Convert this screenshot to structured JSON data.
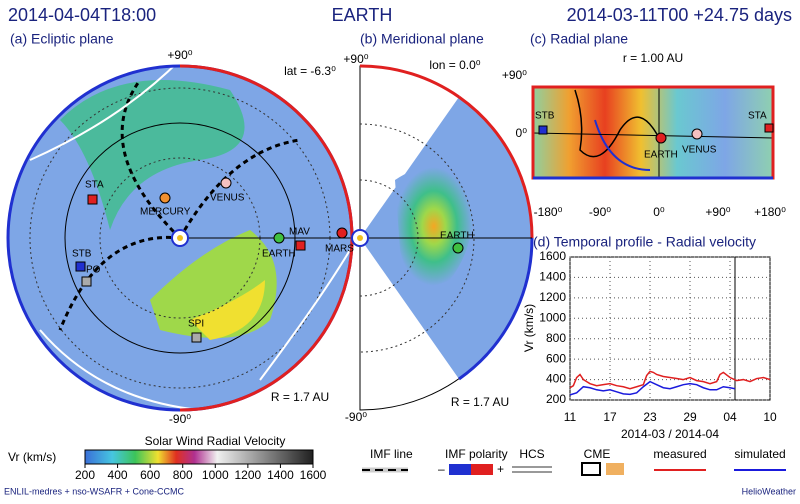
{
  "header": {
    "left": "2014-04-04T18:00",
    "center": "EARTH",
    "right": "2014-03-11T00 +24.75 days"
  },
  "ecliptic": {
    "title": "(a) Ecliptic plane",
    "top": "+90⁰",
    "bottom": "-90⁰",
    "lat": "lat = -6.3⁰",
    "radius": "R = 1.7 AU",
    "objects": [
      "STA",
      "MERCURY",
      "VENUS",
      "EARTH",
      "MAV",
      "MARS",
      "STB",
      "PO",
      "SPI"
    ]
  },
  "meridional": {
    "title": "(b) Meridional plane",
    "top": "+90⁰",
    "bottom": "-90⁰",
    "lon": "lon = 0.0⁰",
    "radius": "R = 1.7 AU",
    "object": "EARTH"
  },
  "radial": {
    "title": "(c) Radial plane",
    "r": "r = 1.00 AU",
    "yticks": [
      "+90⁰",
      "0⁰"
    ],
    "xticks": [
      "-180⁰",
      "-90⁰",
      "0⁰",
      "+90⁰",
      "+180⁰"
    ],
    "objects": [
      "STB",
      "STA",
      "EARTH",
      "VENUS"
    ]
  },
  "colorbar": {
    "title": "Solar Wind Radial Velocity",
    "label": "Vr (km/s)",
    "range": [
      200,
      1600
    ],
    "ticks": [
      200,
      400,
      600,
      800,
      1000,
      1200,
      1400,
      1600
    ]
  },
  "legend": {
    "imf_line": "IMF line",
    "imf_polarity": "IMF polarity",
    "minus": "–",
    "plus": "+",
    "hcs": "HCS",
    "cme": "CME"
  },
  "footer": {
    "left": "ENLIL-medres + nso-WSAFR + Cone-CCMC",
    "right": "HelioWeather"
  },
  "chart_data": {
    "type": "line",
    "title": "(d) Temporal profile - Radial velocity",
    "ylabel": "Vr (km/s)",
    "xlabel": "2014-03 / 2014-04",
    "xlim": [
      0,
      30
    ],
    "xticks": [
      {
        "value": 0,
        "label": "11"
      },
      {
        "value": 6,
        "label": "17"
      },
      {
        "value": 12,
        "label": "23"
      },
      {
        "value": 18,
        "label": "29"
      },
      {
        "value": 24,
        "label": "04"
      },
      {
        "value": 30,
        "label": "10"
      }
    ],
    "ylim": [
      200,
      1600
    ],
    "yticks": [
      200,
      400,
      600,
      800,
      1000,
      1200,
      1400,
      1600
    ],
    "grid": true,
    "now": 24.75,
    "series": [
      {
        "name": "measured",
        "color": "#e02020",
        "x": [
          0,
          0.5,
          1,
          1.5,
          2,
          2.5,
          3,
          4,
          5,
          6,
          7,
          8,
          9,
          10,
          11,
          11.5,
          12,
          12.5,
          13,
          14,
          15,
          16,
          17,
          18,
          19,
          20,
          21,
          22,
          22.5,
          23,
          24,
          25,
          26,
          27,
          28,
          29,
          30
        ],
        "values": [
          320,
          340,
          420,
          450,
          400,
          380,
          360,
          340,
          350,
          360,
          340,
          330,
          310,
          330,
          350,
          440,
          480,
          470,
          450,
          430,
          420,
          410,
          400,
          420,
          390,
          380,
          360,
          380,
          450,
          470,
          420,
          390,
          400,
          380,
          410,
          420,
          400
        ]
      },
      {
        "name": "simulated",
        "color": "#1a1adc",
        "x": [
          0,
          1,
          2,
          3,
          4,
          5,
          6,
          7,
          8,
          9,
          10,
          11,
          12,
          13,
          14,
          15,
          16,
          17,
          18,
          19,
          20,
          21,
          22,
          23,
          24,
          24.75
        ],
        "values": [
          250,
          270,
          330,
          320,
          300,
          290,
          300,
          280,
          260,
          255,
          270,
          330,
          380,
          350,
          320,
          310,
          330,
          350,
          360,
          350,
          320,
          300,
          300,
          330,
          320,
          310
        ]
      }
    ]
  }
}
